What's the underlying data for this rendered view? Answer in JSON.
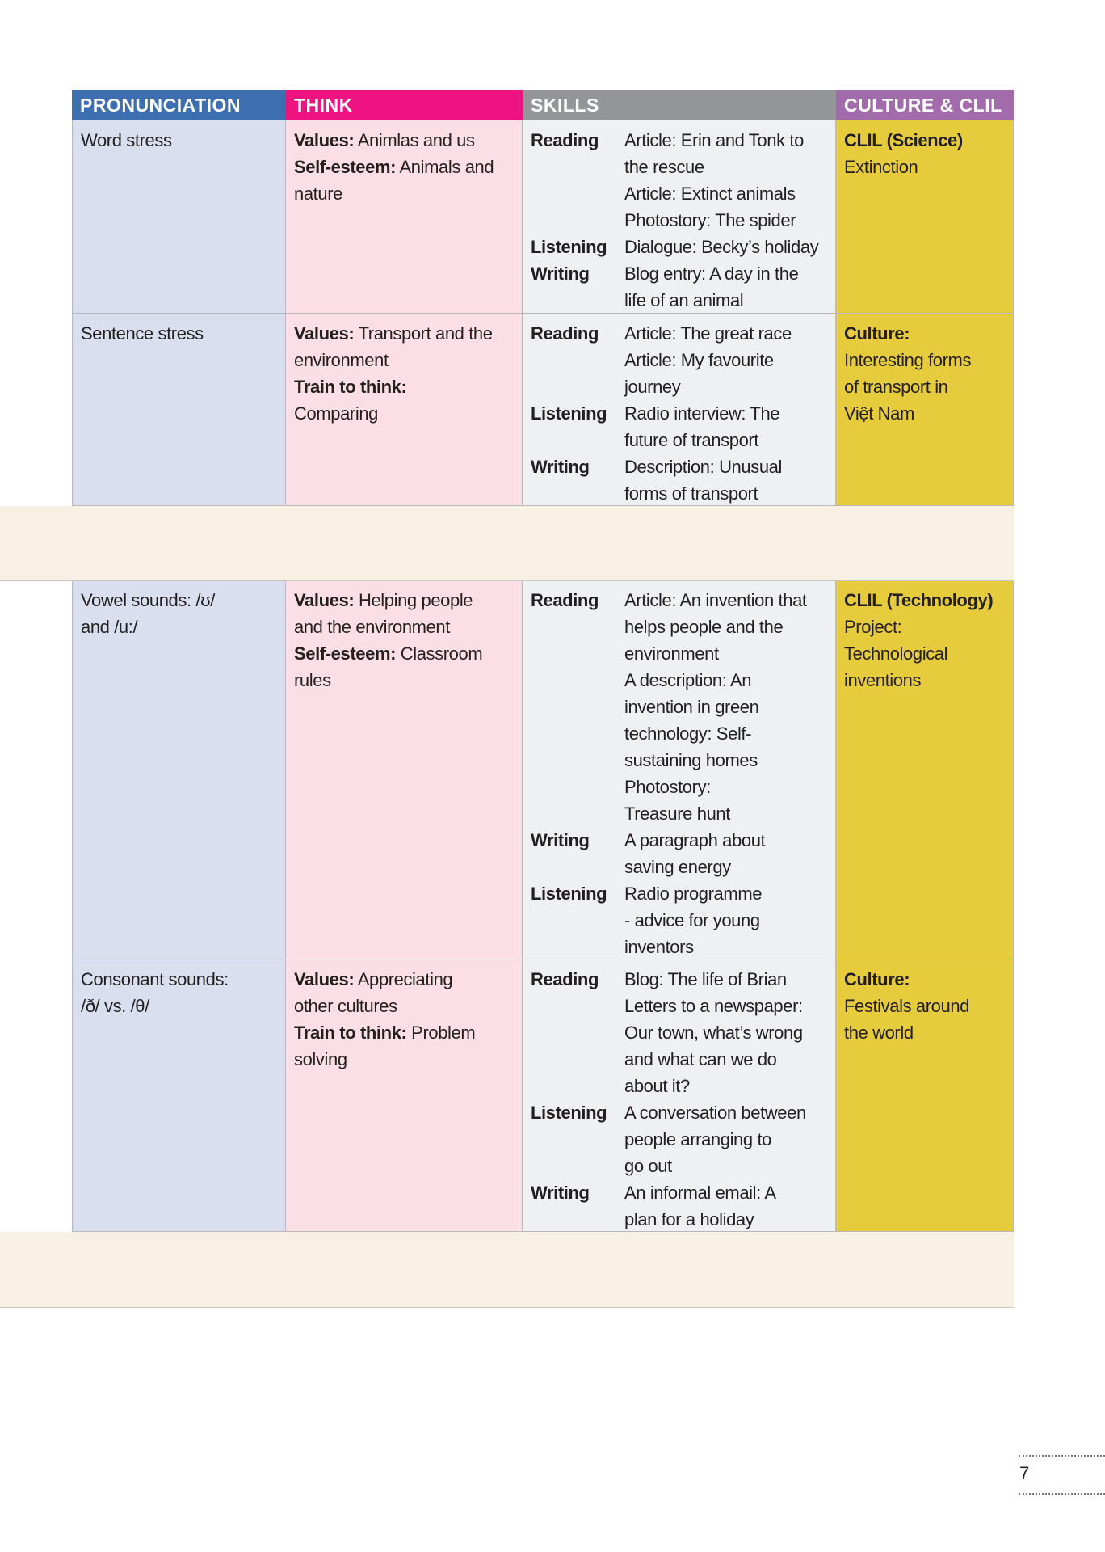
{
  "headers": [
    {
      "label": "PRONUNCIATION",
      "color": "#3d6fb0"
    },
    {
      "label": "THINK",
      "color": "#ee1380"
    },
    {
      "label": "SKILLS",
      "color": "#939598"
    },
    {
      "label": "CULTURE & CLIL",
      "color": "#a26bab"
    }
  ],
  "rows": [
    {
      "pronunciation": [
        "Word stress"
      ],
      "think": [
        {
          "b": "Values:",
          "t": " Animlas and us"
        },
        {
          "b": "Self-esteem:",
          "t": " Animals and"
        },
        {
          "b": "",
          "t": "nature"
        }
      ],
      "skills": [
        {
          "l": "Reading",
          "t": "Article: Erin and Tonk to"
        },
        {
          "l": "",
          "t": "the rescue"
        },
        {
          "l": "",
          "t": "Article: Extinct animals"
        },
        {
          "l": "",
          "t": "Photostory: The spider"
        },
        {
          "l": "Listening",
          "t": "Dialogue: Becky’s holiday"
        },
        {
          "l": "Writing",
          "t": "Blog entry: A day in the"
        },
        {
          "l": "",
          "t": "life of an animal"
        }
      ],
      "culture": [
        {
          "b": "CLIL (Science)",
          "t": ""
        },
        {
          "b": "",
          "t": "Extinction"
        }
      ]
    },
    {
      "pronunciation": [
        "Sentence stress"
      ],
      "think": [
        {
          "b": "Values:",
          "t": " Transport and the"
        },
        {
          "b": "",
          "t": "environment"
        },
        {
          "b": "Train to think:",
          "t": ""
        },
        {
          "b": "",
          "t": "Comparing"
        }
      ],
      "skills": [
        {
          "l": "Reading",
          "t": "Article: The great race"
        },
        {
          "l": "",
          "t": "Article: My favourite"
        },
        {
          "l": "",
          "t": "journey"
        },
        {
          "l": "Listening",
          "t": "Radio interview: The"
        },
        {
          "l": "",
          "t": "future of transport"
        },
        {
          "l": "Writing",
          "t": "Description: Unusual"
        },
        {
          "l": "",
          "t": "forms of transport"
        }
      ],
      "culture": [
        {
          "b": "Culture:",
          "t": ""
        },
        {
          "b": "",
          "t": "Interesting forms"
        },
        {
          "b": "",
          "t": "of transport in"
        },
        {
          "b": "",
          "t": "Việt Nam"
        }
      ]
    },
    {
      "pronunciation": [
        "Vowel sounds: /ʊ/",
        "and /u:/"
      ],
      "think": [
        {
          "b": "Values:",
          "t": " Helping people"
        },
        {
          "b": "",
          "t": "and the environment"
        },
        {
          "b": "Self-esteem:",
          "t": " Classroom"
        },
        {
          "b": "",
          "t": "rules"
        }
      ],
      "skills": [
        {
          "l": "Reading",
          "t": "Article: An invention that"
        },
        {
          "l": "",
          "t": "helps people and the"
        },
        {
          "l": "",
          "t": "environment"
        },
        {
          "l": "",
          "t": "A description: An"
        },
        {
          "l": "",
          "t": "invention in green"
        },
        {
          "l": "",
          "t": "technology: Self-"
        },
        {
          "l": "",
          "t": "sustaining homes"
        },
        {
          "l": "",
          "t": "Photostory:"
        },
        {
          "l": "",
          "t": "Treasure hunt"
        },
        {
          "l": "Writing",
          "t": "A paragraph about"
        },
        {
          "l": "",
          "t": "saving energy"
        },
        {
          "l": "Listening",
          "t": "Radio programme"
        },
        {
          "l": "",
          "t": "- advice for young"
        },
        {
          "l": "",
          "t": "inventors"
        }
      ],
      "culture": [
        {
          "b": "CLIL (Technology)",
          "t": ""
        },
        {
          "b": "",
          "t": "Project:"
        },
        {
          "b": "",
          "t": "Technological"
        },
        {
          "b": "",
          "t": "inventions"
        }
      ]
    },
    {
      "pronunciation": [
        "Consonant sounds:",
        "/ð/ vs. /θ/"
      ],
      "think": [
        {
          "b": "Values:",
          "t": " Appreciating"
        },
        {
          "b": "",
          "t": "other cultures"
        },
        {
          "b": "Train to think:",
          "t": " Problem"
        },
        {
          "b": "",
          "t": "solving"
        }
      ],
      "skills": [
        {
          "l": "Reading",
          "t": "Blog: The life of Brian"
        },
        {
          "l": "",
          "t": "Letters to a newspaper:"
        },
        {
          "l": "",
          "t": "Our town, what’s wrong"
        },
        {
          "l": "",
          "t": "and what can we do"
        },
        {
          "l": "",
          "t": "about it?"
        },
        {
          "l": "Listening",
          "t": "A conversation between"
        },
        {
          "l": "",
          "t": "people arranging to"
        },
        {
          "l": "",
          "t": "go out"
        },
        {
          "l": "Writing",
          "t": "An informal email: A"
        },
        {
          "l": "",
          "t": "plan for a holiday"
        }
      ],
      "culture": [
        {
          "b": "Culture:",
          "t": ""
        },
        {
          "b": "",
          "t": "Festivals around"
        },
        {
          "b": "",
          "t": "the world"
        }
      ]
    }
  ],
  "page_number": "7"
}
